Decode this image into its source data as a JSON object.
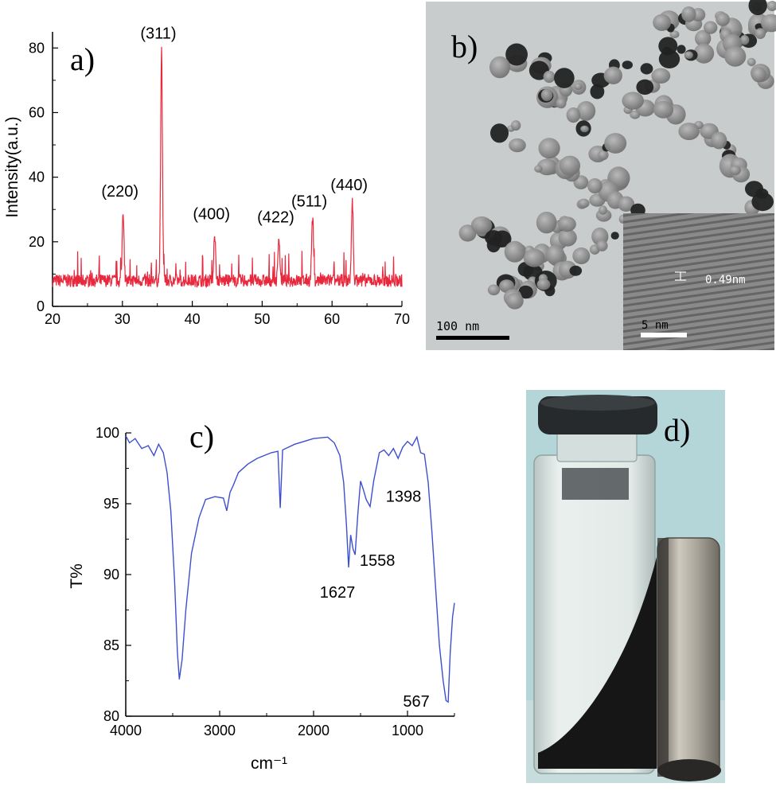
{
  "chart_data": [
    {
      "panel": "a)",
      "type": "line",
      "xlabel": "",
      "ylabel": "Intensity(a.u.)",
      "xlim": [
        20,
        70
      ],
      "ylim": [
        0,
        85
      ],
      "xticks": [
        20,
        30,
        40,
        50,
        60,
        70
      ],
      "yticks": [
        0,
        20,
        40,
        60,
        80
      ],
      "color": "#e8283c",
      "baseline": 8,
      "peaks": [
        {
          "label": "(220)",
          "x": 30.1,
          "y": 30
        },
        {
          "label": "(311)",
          "x": 35.6,
          "y": 79
        },
        {
          "label": "(400)",
          "x": 43.2,
          "y": 23
        },
        {
          "label": "(422)",
          "x": 52.4,
          "y": 22
        },
        {
          "label": "(511)",
          "x": 57.2,
          "y": 27
        },
        {
          "label": "(440)",
          "x": 62.9,
          "y": 32
        }
      ]
    },
    {
      "panel": "c)",
      "type": "line",
      "xlabel": "cm⁻¹",
      "ylabel": "T%",
      "xlim": [
        4000,
        500
      ],
      "ylim": [
        80,
        100
      ],
      "xticks": [
        4000,
        3000,
        2000,
        1000
      ],
      "yticks": [
        80,
        85,
        90,
        95,
        100
      ],
      "color": "#3d4fcf",
      "points": [
        [
          4000,
          99.8
        ],
        [
          3960,
          99.3
        ],
        [
          3900,
          99.6
        ],
        [
          3830,
          98.9
        ],
        [
          3760,
          99.1
        ],
        [
          3700,
          98.4
        ],
        [
          3650,
          99.2
        ],
        [
          3600,
          98.6
        ],
        [
          3560,
          97.2
        ],
        [
          3520,
          94.5
        ],
        [
          3480,
          89.5
        ],
        [
          3450,
          84.5
        ],
        [
          3430,
          82.6
        ],
        [
          3400,
          84.0
        ],
        [
          3360,
          87.5
        ],
        [
          3300,
          91.5
        ],
        [
          3220,
          94.0
        ],
        [
          3150,
          95.3
        ],
        [
          3050,
          95.5
        ],
        [
          2960,
          95.4
        ],
        [
          2925,
          94.5
        ],
        [
          2890,
          95.8
        ],
        [
          2855,
          96.3
        ],
        [
          2800,
          97.2
        ],
        [
          2700,
          97.8
        ],
        [
          2600,
          98.2
        ],
        [
          2450,
          98.6
        ],
        [
          2380,
          98.7
        ],
        [
          2355,
          94.7
        ],
        [
          2330,
          98.8
        ],
        [
          2200,
          99.2
        ],
        [
          2000,
          99.6
        ],
        [
          1850,
          99.7
        ],
        [
          1780,
          99.3
        ],
        [
          1720,
          98.4
        ],
        [
          1680,
          96.5
        ],
        [
          1650,
          93.5
        ],
        [
          1627,
          90.5
        ],
        [
          1605,
          92.8
        ],
        [
          1580,
          91.8
        ],
        [
          1558,
          91.4
        ],
        [
          1530,
          94.2
        ],
        [
          1500,
          96.6
        ],
        [
          1470,
          96.0
        ],
        [
          1440,
          95.3
        ],
        [
          1398,
          94.8
        ],
        [
          1360,
          96.6
        ],
        [
          1300,
          98.6
        ],
        [
          1250,
          98.8
        ],
        [
          1200,
          98.4
        ],
        [
          1150,
          98.9
        ],
        [
          1100,
          98.2
        ],
        [
          1050,
          99.0
        ],
        [
          1000,
          99.4
        ],
        [
          950,
          99.1
        ],
        [
          900,
          99.7
        ],
        [
          860,
          98.6
        ],
        [
          820,
          98.5
        ],
        [
          780,
          96.5
        ],
        [
          740,
          93.0
        ],
        [
          700,
          89.0
        ],
        [
          660,
          85.0
        ],
        [
          620,
          82.5
        ],
        [
          590,
          81.1
        ],
        [
          567,
          81.0
        ],
        [
          545,
          84.5
        ],
        [
          520,
          87.0
        ],
        [
          500,
          88.0
        ]
      ],
      "peaks": [
        {
          "label": "1398",
          "x": 1398,
          "y": 94.8
        },
        {
          "label": "1558",
          "x": 1558,
          "y": 91.4
        },
        {
          "label": "1627",
          "x": 1627,
          "y": 90.5
        },
        {
          "label": "567",
          "x": 567,
          "y": 81.0
        }
      ]
    }
  ],
  "panels": {
    "b": {
      "letter": "b)",
      "scale_main": "100 nm",
      "scale_inset": "5 nm",
      "d_spacing": "0.49nm"
    },
    "d": {
      "letter": "d)"
    }
  }
}
